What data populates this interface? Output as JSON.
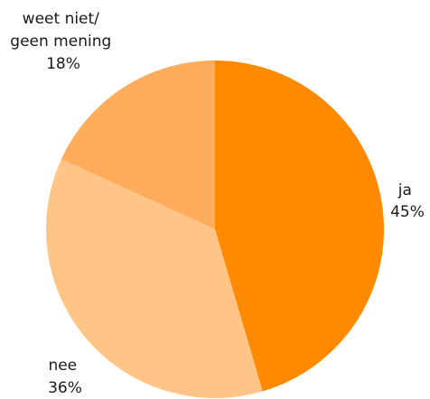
{
  "chart_data": {
    "type": "pie",
    "title": "",
    "slices": [
      {
        "label_lines": [
          "ja"
        ],
        "value": 45,
        "value_text": "45%",
        "color": "#ff8a00"
      },
      {
        "label_lines": [
          "nee"
        ],
        "value": 36,
        "value_text": "36%",
        "color": "#ffc587"
      },
      {
        "label_lines": [
          "weet niet/",
          "geen mening"
        ],
        "value": 18,
        "value_text": "18%",
        "color": "#ffad5c"
      }
    ],
    "start_angle": "12 o'clock",
    "direction": "clockwise",
    "legend": "none"
  }
}
